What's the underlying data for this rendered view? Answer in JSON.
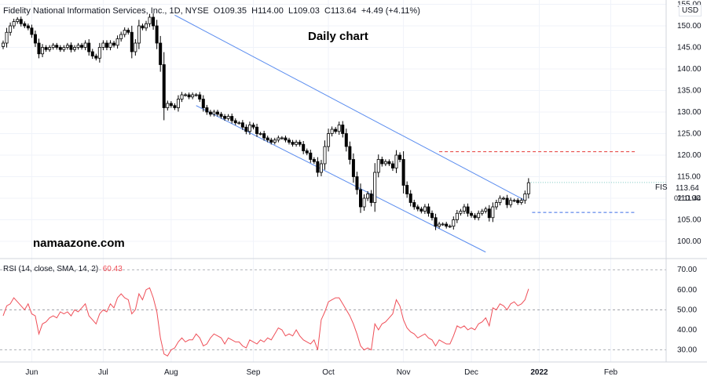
{
  "header": {
    "symbol_line": "Fidelity National Information Services, Inc., 1D, NYSE",
    "o_label": "O",
    "o_value": "109.35",
    "h_label": "H",
    "h_value": "114.00",
    "l_label": "L",
    "l_value": "109.03",
    "c_label": "C",
    "c_value": "113.64",
    "change": "+4.49 (+4.11%)",
    "currency": "USD"
  },
  "annotations": {
    "title": "Daily chart",
    "watermark": "namaazone.com",
    "ticker_label": "FIS",
    "last_price": "113.64",
    "countdown": "02:11:44"
  },
  "colors": {
    "candle": "#000000",
    "channel": "#5b8def",
    "resistance": "#e53935",
    "support": "#3c6ee6",
    "rsi": "#ef4f58",
    "grid": "#f0f3fa",
    "axis_text": "#131722"
  },
  "chart_data": [
    {
      "type": "candlestick",
      "title": "Daily chart",
      "series_name": "FIS",
      "ylim": [
        96,
        156
      ],
      "y_ticks": [
        100,
        105,
        110,
        115,
        120,
        125,
        130,
        135,
        140,
        145,
        150,
        155
      ],
      "y_tick_labels": [
        "100.00",
        "105.00",
        "110.00",
        "115.00",
        "120.00",
        "125.00",
        "130.00",
        "135.00",
        "140.00",
        "145.00",
        "150.00",
        "155.00"
      ],
      "x_tick_labels": [
        "Jun",
        "Jul",
        "Aug",
        "Sep",
        "Oct",
        "Nov",
        "Dec",
        "2022",
        "Feb"
      ],
      "x_tick_index": [
        8,
        28,
        47,
        70,
        91,
        112,
        131,
        150,
        170
      ],
      "x_range": [
        0,
        184
      ],
      "close": [
        146,
        148.5,
        150,
        151,
        151.5,
        150.5,
        150,
        149.5,
        148,
        146,
        143.5,
        145,
        144.5,
        145,
        145.5,
        145,
        144.5,
        145,
        145.5,
        144.5,
        145,
        145.5,
        145,
        146,
        144,
        143,
        142.5,
        145,
        146,
        145,
        146,
        145.5,
        147,
        148,
        149,
        148.5,
        144,
        146,
        150,
        149.5,
        150.5,
        152,
        150,
        146,
        141,
        131,
        132,
        131.5,
        131,
        133,
        134,
        134,
        133.5,
        134,
        134,
        133,
        131,
        130,
        129.5,
        130,
        129.5,
        129,
        128.5,
        129,
        128,
        127.5,
        127.5,
        126.5,
        125.5,
        127,
        126.5,
        125,
        125,
        124,
        123.5,
        123,
        123.5,
        124,
        124,
        123.5,
        123,
        122.5,
        123,
        122.5,
        121,
        120.5,
        119,
        118.5,
        116,
        118,
        122,
        125,
        126,
        125.5,
        127,
        125,
        122,
        119,
        115,
        112,
        108,
        110,
        111,
        109,
        116,
        119,
        118,
        118.5,
        118,
        117,
        120,
        119,
        113,
        111,
        109,
        108,
        107.5,
        107,
        108,
        106.5,
        105.5,
        103.5,
        104,
        104,
        103.5,
        103.5,
        105,
        106.5,
        107,
        108,
        106.5,
        106,
        105.5,
        106.5,
        107,
        107.5,
        105.5,
        108,
        109,
        110,
        110,
        108.5,
        109.5,
        109.5,
        109,
        109.5,
        111,
        113.6
      ],
      "rsi": {
        "name": "RSI (14, close, SMA, 14, 2)",
        "value_label": "60.43",
        "ylim": [
          24,
          74
        ],
        "y_ticks": [
          30,
          40,
          50,
          60,
          70
        ],
        "y_tick_labels": [
          "30.00",
          "40.00",
          "50.00",
          "60.00",
          "70.00"
        ],
        "levels": [
          30,
          50,
          70
        ],
        "values": [
          47,
          52,
          53,
          56,
          54,
          52,
          50,
          53,
          48,
          47,
          38,
          43,
          44,
          46,
          47,
          46,
          49,
          48,
          49,
          47,
          50,
          49,
          51,
          53,
          47,
          45,
          43,
          48,
          50,
          49,
          53,
          51,
          56,
          58,
          56,
          55,
          48,
          50,
          58,
          55,
          60,
          61,
          56,
          49,
          36,
          28,
          27,
          30,
          31,
          34,
          36,
          34,
          35,
          35,
          38,
          36,
          32,
          33,
          36,
          38,
          37,
          36,
          33,
          36,
          35,
          34,
          34,
          32,
          31,
          35,
          34,
          33,
          35,
          34,
          36,
          35,
          38,
          41,
          40,
          37,
          38,
          37,
          40,
          37,
          35,
          34,
          33,
          35,
          30,
          45,
          49,
          54,
          55,
          56,
          56,
          53,
          50,
          47,
          43,
          38,
          32,
          30,
          31,
          30,
          43,
          40,
          43,
          44,
          46,
          48,
          55,
          52,
          45,
          41,
          39,
          38,
          36,
          37,
          38,
          36,
          35,
          32,
          35,
          34,
          33,
          33,
          37,
          42,
          41,
          42,
          40,
          41,
          40,
          43,
          44,
          46,
          42,
          51,
          50,
          53,
          52,
          50,
          53,
          54,
          52,
          53,
          55,
          60.43
        ]
      }
    }
  ]
}
